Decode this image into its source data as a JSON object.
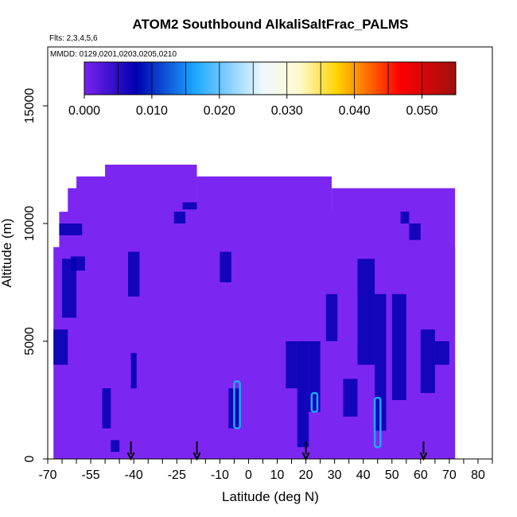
{
  "chart_data": {
    "type": "heatmap",
    "title": "ATOM2 Southbound AlkaliSaltFrac_PALMS",
    "flights_note": "Flts: 2,3,4,5,6",
    "dates_note": "MMDD: 0129,0201,0203,0205,0210",
    "xlabel": "Latitude (deg N)",
    "ylabel": "Altitude (m)",
    "xlim": [
      -70,
      85
    ],
    "ylim": [
      0,
      17500
    ],
    "x_tick_labels": [
      "-70",
      "-55",
      "-40",
      "-25",
      "-10",
      "0",
      "10",
      "20",
      "30",
      "40",
      "50",
      "60",
      "70",
      "80"
    ],
    "y_tick_labels": [
      "0",
      "5000",
      "10000",
      "15000"
    ],
    "colorbar": {
      "min": 0,
      "max": 0.055,
      "tick_labels": [
        "0.000",
        "0.010",
        "0.020",
        "0.030",
        "0.040",
        "0.050"
      ],
      "colors": [
        "#7a22f0",
        "#0000b0",
        "#1ea8ff",
        "#eef8ff",
        "#ffd400",
        "#ff0000",
        "#a01010"
      ]
    },
    "background_value_color": "#7c26f2",
    "data_extent": {
      "columns": [
        {
          "lat": [
            -68,
            72
          ],
          "alt": [
            0,
            9000
          ]
        },
        {
          "lat": [
            -66,
            70
          ],
          "alt": [
            0,
            10500
          ]
        },
        {
          "lat": [
            -63,
            -28
          ],
          "alt": [
            0,
            11500
          ]
        },
        {
          "lat": [
            -60,
            -30
          ],
          "alt": [
            0,
            12000
          ]
        },
        {
          "lat": [
            -50,
            -18
          ],
          "alt": [
            0,
            12500
          ]
        },
        {
          "lat": [
            -18,
            29
          ],
          "alt": [
            0,
            12000
          ]
        },
        {
          "lat": [
            29,
            72
          ],
          "alt": [
            0,
            11500
          ]
        }
      ]
    },
    "low_value_cells": [
      {
        "lat": [
          -68,
          -63
        ],
        "alt": [
          4000,
          5500
        ]
      },
      {
        "lat": [
          -65,
          -60
        ],
        "alt": [
          6000,
          8500
        ]
      },
      {
        "lat": [
          -62,
          -57
        ],
        "alt": [
          8000,
          8600
        ]
      },
      {
        "lat": [
          -66,
          -58
        ],
        "alt": [
          9500,
          10000
        ]
      },
      {
        "lat": [
          -51,
          -48
        ],
        "alt": [
          1300,
          3000
        ]
      },
      {
        "lat": [
          -48,
          -45
        ],
        "alt": [
          300,
          800
        ]
      },
      {
        "lat": [
          -41,
          -39
        ],
        "alt": [
          3000,
          4500
        ]
      },
      {
        "lat": [
          -42,
          -38
        ],
        "alt": [
          6900,
          8800
        ]
      },
      {
        "lat": [
          -26,
          -22
        ],
        "alt": [
          10000,
          10500
        ]
      },
      {
        "lat": [
          -23,
          -18
        ],
        "alt": [
          10600,
          10900
        ]
      },
      {
        "lat": [
          -10,
          -6
        ],
        "alt": [
          7500,
          8800
        ]
      },
      {
        "lat": [
          -7,
          -3
        ],
        "alt": [
          1300,
          3000
        ]
      },
      {
        "lat": [
          13,
          17
        ],
        "alt": [
          3000,
          5000
        ]
      },
      {
        "lat": [
          17,
          21
        ],
        "alt": [
          500,
          5000
        ]
      },
      {
        "lat": [
          21,
          25
        ],
        "alt": [
          2000,
          5000
        ]
      },
      {
        "lat": [
          27,
          31
        ],
        "alt": [
          5000,
          7000
        ]
      },
      {
        "lat": [
          33,
          38
        ],
        "alt": [
          1800,
          3400
        ]
      },
      {
        "lat": [
          38,
          44
        ],
        "alt": [
          4000,
          8500
        ]
      },
      {
        "lat": [
          44,
          48
        ],
        "alt": [
          1200,
          7000
        ]
      },
      {
        "lat": [
          50,
          55
        ],
        "alt": [
          2500,
          7000
        ]
      },
      {
        "lat": [
          53,
          56
        ],
        "alt": [
          10000,
          10500
        ]
      },
      {
        "lat": [
          56,
          60
        ],
        "alt": [
          9300,
          10000
        ]
      },
      {
        "lat": [
          60,
          65
        ],
        "alt": [
          2800,
          5500
        ]
      },
      {
        "lat": [
          65,
          70
        ],
        "alt": [
          4000,
          5000
        ]
      }
    ],
    "contour_highlights": [
      {
        "lat": [
          -5,
          -3
        ],
        "alt": [
          1300,
          3300
        ],
        "value": 0.02
      },
      {
        "lat": [
          22,
          24
        ],
        "alt": [
          2000,
          2800
        ],
        "value": 0.02
      },
      {
        "lat": [
          44,
          46
        ],
        "alt": [
          500,
          2600
        ],
        "value": 0.02
      }
    ],
    "flight_markers_lat": [
      -41,
      -18,
      20,
      61
    ]
  }
}
